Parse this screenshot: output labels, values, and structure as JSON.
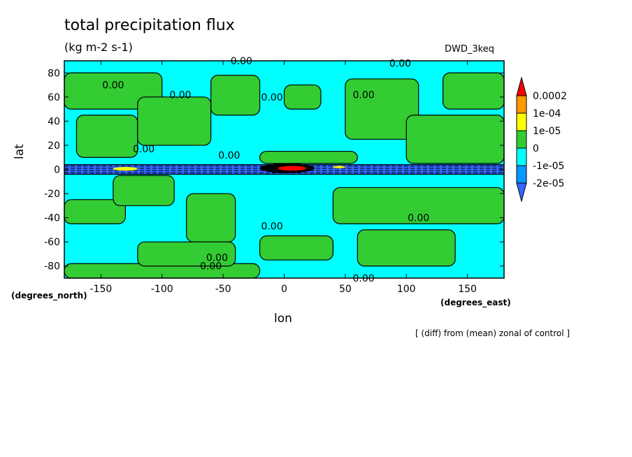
{
  "chart_data": {
    "type": "heatmap",
    "title": "total precipitation flux",
    "units": "(kg m-2 s-1)",
    "model_label": "DWD_3keq",
    "xlabel": "lon",
    "ylabel": "lat",
    "x_units": "(degrees_east)",
    "y_units": "(degrees_north)",
    "note": "[ (diff) from (mean) zonal of control ]",
    "xlim": [
      -180,
      180
    ],
    "ylim": [
      -90,
      90
    ],
    "x_ticks": [
      -150,
      -100,
      -50,
      0,
      50,
      100,
      150
    ],
    "x_tick_labels": [
      "-150",
      "-100",
      "-50",
      "0",
      "50",
      "100",
      "150"
    ],
    "y_ticks": [
      80,
      60,
      40,
      20,
      0,
      -20,
      -40,
      -60,
      -80
    ],
    "y_tick_labels": [
      "80",
      "60",
      "40",
      "20",
      "0",
      "-20",
      "-40",
      "-60",
      "-80"
    ],
    "colorbar": {
      "labels": [
        "0.0002",
        "1e-04",
        "1e-05",
        "0",
        "-1e-05",
        "-2e-05"
      ],
      "colors": [
        "#ff0000",
        "#ff9900",
        "#ffff00",
        "#33cc33",
        "#00ffff",
        "#0099ff",
        "#3366ff"
      ]
    },
    "contour_label": "0.00",
    "regions": [
      {
        "lon": [
          -180,
          -100
        ],
        "lat": [
          50,
          80
        ],
        "color": "#33cc33"
      },
      {
        "lon": [
          -170,
          -120
        ],
        "lat": [
          10,
          45
        ],
        "color": "#33cc33"
      },
      {
        "lon": [
          -120,
          -60
        ],
        "lat": [
          20,
          60
        ],
        "color": "#33cc33"
      },
      {
        "lon": [
          -60,
          -20
        ],
        "lat": [
          45,
          78
        ],
        "color": "#33cc33"
      },
      {
        "lon": [
          0,
          30
        ],
        "lat": [
          50,
          70
        ],
        "color": "#33cc33"
      },
      {
        "lon": [
          -20,
          60
        ],
        "lat": [
          5,
          15
        ],
        "color": "#33cc33"
      },
      {
        "lon": [
          50,
          110
        ],
        "lat": [
          25,
          75
        ],
        "color": "#33cc33"
      },
      {
        "lon": [
          100,
          180
        ],
        "lat": [
          5,
          45
        ],
        "color": "#33cc33"
      },
      {
        "lon": [
          130,
          180
        ],
        "lat": [
          50,
          80
        ],
        "color": "#33cc33"
      },
      {
        "lon": [
          -180,
          -130
        ],
        "lat": [
          -45,
          -25
        ],
        "color": "#33cc33"
      },
      {
        "lon": [
          -140,
          -90
        ],
        "lat": [
          -30,
          -5
        ],
        "color": "#33cc33"
      },
      {
        "lon": [
          -80,
          -40
        ],
        "lat": [
          -60,
          -20
        ],
        "color": "#33cc33"
      },
      {
        "lon": [
          -180,
          -20
        ],
        "lat": [
          -90,
          -78
        ],
        "color": "#33cc33"
      },
      {
        "lon": [
          -120,
          -40
        ],
        "lat": [
          -80,
          -60
        ],
        "color": "#33cc33"
      },
      {
        "lon": [
          40,
          180
        ],
        "lat": [
          -45,
          -15
        ],
        "color": "#33cc33"
      },
      {
        "lon": [
          60,
          140
        ],
        "lat": [
          -80,
          -50
        ],
        "color": "#33cc33"
      },
      {
        "lon": [
          -20,
          40
        ],
        "lat": [
          -75,
          -55
        ],
        "color": "#33cc33"
      }
    ],
    "equatorial_band": {
      "lon": [
        -180,
        180
      ],
      "lat": [
        -4,
        4
      ],
      "color": "#3366ff"
    },
    "hotspots": [
      {
        "lon": [
          -20,
          25
        ],
        "lat": [
          -3,
          5
        ],
        "color": "#000000"
      },
      {
        "lon": [
          -5,
          18
        ],
        "lat": [
          -1,
          3
        ],
        "color": "#ff0000"
      },
      {
        "lon": [
          -140,
          -120
        ],
        "lat": [
          -1,
          2
        ],
        "color": "#ffff00"
      },
      {
        "lon": [
          40,
          50
        ],
        "lat": [
          1,
          3
        ],
        "color": "#ffff00"
      }
    ]
  }
}
